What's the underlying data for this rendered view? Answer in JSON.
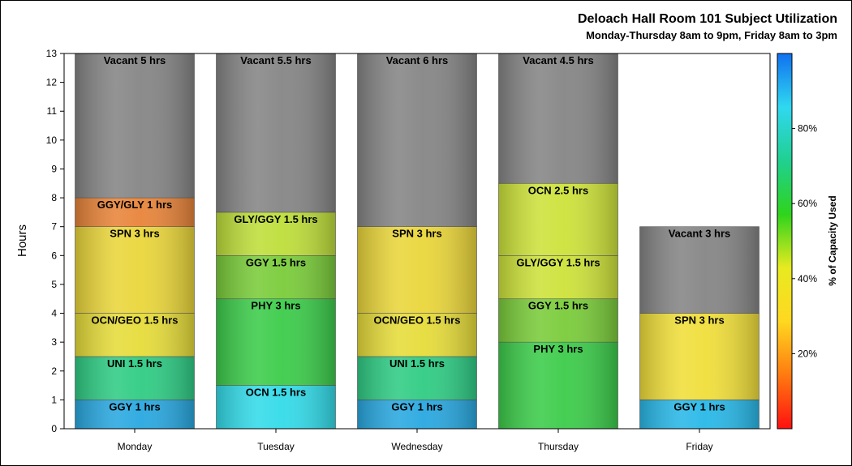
{
  "chart_data": {
    "type": "bar",
    "stacked": true,
    "title": "Deloach Hall Room 101 Subject Utilization",
    "subtitle": "Monday-Thursday 8am to 9pm, Friday 8am to 3pm",
    "ylabel": "Hours",
    "ylim": [
      0,
      13
    ],
    "yticks": [
      0,
      1,
      2,
      3,
      4,
      5,
      6,
      7,
      8,
      9,
      10,
      11,
      12,
      13
    ],
    "categories": [
      "Monday",
      "Tuesday",
      "Wednesday",
      "Thursday",
      "Friday"
    ],
    "stacks": [
      [
        {
          "label": "GGY 1 hrs",
          "hours": 1,
          "color": "#29a8e0"
        },
        {
          "label": "UNI 1.5 hrs",
          "hours": 1.5,
          "color": "#2fcc84"
        },
        {
          "label": "OCN/GEO 1.5 hrs",
          "hours": 1.5,
          "color": "#e6dc3a"
        },
        {
          "label": "SPN 3 hrs",
          "hours": 3,
          "color": "#ead63a"
        },
        {
          "label": "GGY/GLY 1 hrs",
          "hours": 1,
          "color": "#e8843a"
        },
        {
          "label": "Vacant 5 hrs",
          "hours": 5,
          "color": "#858585"
        }
      ],
      [
        {
          "label": "OCN 1.5 hrs",
          "hours": 1.5,
          "color": "#33dbe9"
        },
        {
          "label": "PHY 3 hrs",
          "hours": 3,
          "color": "#3ccc4a"
        },
        {
          "label": "GGY 1.5 hrs",
          "hours": 1.5,
          "color": "#7acc3a"
        },
        {
          "label": "GLY/GGY 1.5 hrs",
          "hours": 1.5,
          "color": "#bede3a"
        },
        {
          "label": "Vacant 5.5 hrs",
          "hours": 5.5,
          "color": "#858585"
        }
      ],
      [
        {
          "label": "GGY 1 hrs",
          "hours": 1,
          "color": "#29a8e0"
        },
        {
          "label": "UNI 1.5 hrs",
          "hours": 1.5,
          "color": "#2fcc84"
        },
        {
          "label": "OCN/GEO 1.5 hrs",
          "hours": 1.5,
          "color": "#e6dc3a"
        },
        {
          "label": "SPN 3 hrs",
          "hours": 3,
          "color": "#ead63a"
        },
        {
          "label": "Vacant 6 hrs",
          "hours": 6,
          "color": "#858585"
        }
      ],
      [
        {
          "label": "PHY 3 hrs",
          "hours": 3,
          "color": "#3ccc4a"
        },
        {
          "label": "GGY 1.5 hrs",
          "hours": 1.5,
          "color": "#7acc3a"
        },
        {
          "label": "GLY/GGY 1.5 hrs",
          "hours": 1.5,
          "color": "#cde23a"
        },
        {
          "label": "OCN 2.5 hrs",
          "hours": 2.5,
          "color": "#cde23a"
        },
        {
          "label": "Vacant 4.5 hrs",
          "hours": 4.5,
          "color": "#858585"
        }
      ],
      [
        {
          "label": "GGY 1 hrs",
          "hours": 1,
          "color": "#29b8e8"
        },
        {
          "label": "SPN 3 hrs",
          "hours": 3,
          "color": "#f0de3a"
        },
        {
          "label": "Vacant 3 hrs",
          "hours": 3,
          "color": "#858585"
        }
      ]
    ],
    "colorbar": {
      "label": "% of Capacity Used",
      "ticks": [
        "20%",
        "40%",
        "60%",
        "80%"
      ],
      "tick_values": [
        20,
        40,
        60,
        80
      ],
      "range": [
        0,
        100
      ],
      "gradient": [
        "#ff1010",
        "#ff7a10",
        "#ffd820",
        "#e8ea20",
        "#2ed41c",
        "#20d090",
        "#30d8f0",
        "#1070f0"
      ]
    }
  }
}
